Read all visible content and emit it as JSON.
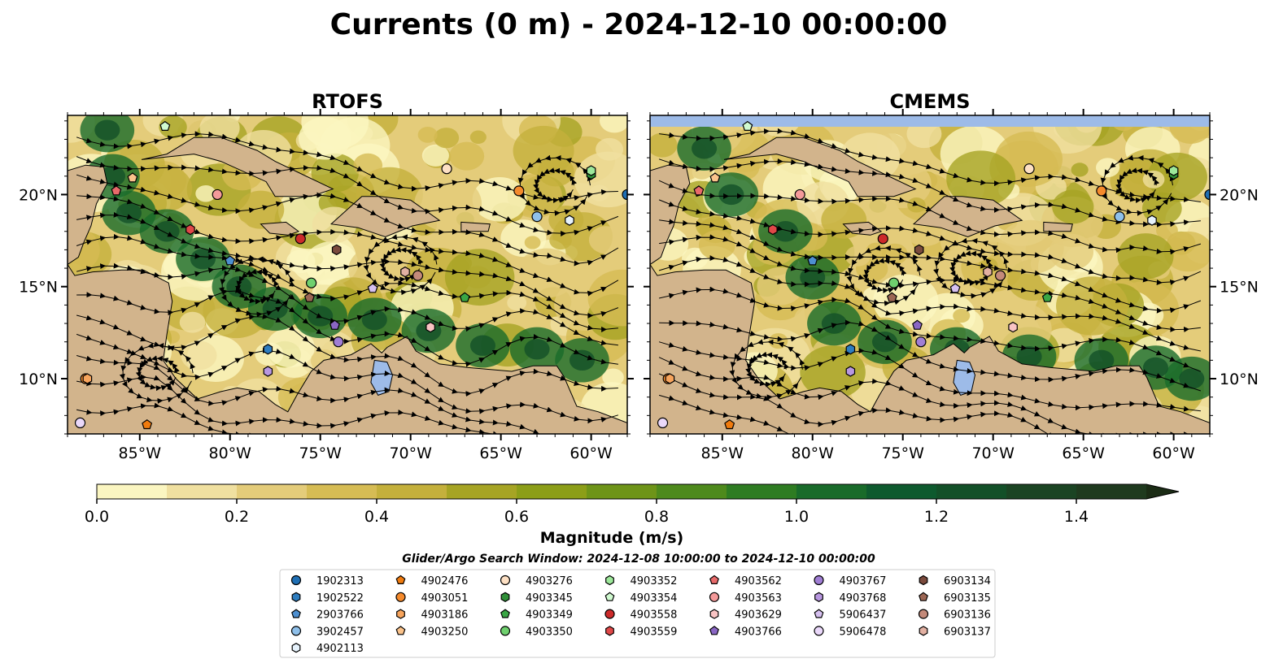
{
  "title": "Currents (0 m) - 2024-12-10 00:00:00",
  "colors": {
    "land": "#d2b48c",
    "water_body": "#9dbbe8",
    "ocean_gaps": "#9dbbe8",
    "scale": [
      "#fbf6c1",
      "#f0e0a0",
      "#e4cc7a",
      "#d6bc54",
      "#c4b03c",
      "#a6a424",
      "#8c9e18",
      "#6e9418",
      "#4e8a1c",
      "#2e7c22",
      "#196b2a",
      "#0e5a2e",
      "#135028",
      "#1b4423",
      "#1f3a1e",
      "#1b2c15"
    ]
  },
  "panels": [
    {
      "title": "RTOFS"
    },
    {
      "title": "CMEMS"
    }
  ],
  "axes": {
    "lon_range": [
      -89,
      -58
    ],
    "lat_range": [
      7,
      24.3
    ],
    "lon_ticks": [
      {
        "value": -85,
        "label": "85°W"
      },
      {
        "value": -80,
        "label": "80°W"
      },
      {
        "value": -75,
        "label": "75°W"
      },
      {
        "value": -70,
        "label": "70°W"
      },
      {
        "value": -65,
        "label": "65°W"
      },
      {
        "value": -60,
        "label": "60°W"
      }
    ],
    "lat_ticks": [
      {
        "value": 20,
        "label": "20°N"
      },
      {
        "value": 15,
        "label": "15°N"
      },
      {
        "value": 10,
        "label": "10°N"
      }
    ]
  },
  "colorbar": {
    "label": "Magnitude (m/s)",
    "min": 0,
    "max": 1.6,
    "step": 0.1,
    "ticks": [
      {
        "value": 0.0,
        "label": "0.0"
      },
      {
        "value": 0.2,
        "label": "0.2"
      },
      {
        "value": 0.4,
        "label": "0.4"
      },
      {
        "value": 0.6,
        "label": "0.6"
      },
      {
        "value": 0.8,
        "label": "0.8"
      },
      {
        "value": 1.0,
        "label": "1.0"
      },
      {
        "value": 1.2,
        "label": "1.2"
      },
      {
        "value": 1.4,
        "label": "1.4"
      }
    ]
  },
  "search_window": "Glider/Argo Search Window: 2024-12-08 10:00:00 to 2024-12-10 00:00:00",
  "floats": [
    {
      "id": "1902313",
      "marker": "circle",
      "color": "#1f6fb4",
      "lon": -58.0,
      "lat": 20.0
    },
    {
      "id": "1902522",
      "marker": "hexagon",
      "color": "#2e7dbf",
      "lon": null,
      "lat": null
    },
    {
      "id": "2903766",
      "marker": "pentagon",
      "color": "#4d8fd0",
      "lon": -80.0,
      "lat": 16.4
    },
    {
      "id": "3902457",
      "marker": "circle",
      "color": "#8fc0ea",
      "lon": -63.0,
      "lat": 18.8
    },
    {
      "id": "4902113",
      "marker": "hexagon",
      "color": "#e6f2fc",
      "lon": -61.2,
      "lat": 18.6
    },
    {
      "id": "4902476",
      "marker": "pentagon",
      "color": "#f07b0e",
      "lon": -84.6,
      "lat": 7.5
    },
    {
      "id": "4903051",
      "marker": "circle",
      "color": "#f58a2c",
      "lon": -64.0,
      "lat": 20.2
    },
    {
      "id": "4903186",
      "marker": "hexagon",
      "color": "#f7a45c",
      "lon": null,
      "lat": null
    },
    {
      "id": "4903250",
      "marker": "pentagon",
      "color": "#fbc38b",
      "lon": -85.4,
      "lat": 20.9
    },
    {
      "id": "4903276",
      "marker": "circle",
      "color": "#fde0c4",
      "lon": -68.0,
      "lat": 21.4
    },
    {
      "id": "4903345",
      "marker": "hexagon",
      "color": "#2f8f38",
      "lon": -60.0,
      "lat": 21.1
    },
    {
      "id": "4903349",
      "marker": "pentagon",
      "color": "#3aa645",
      "lon": -67.0,
      "lat": 14.4
    },
    {
      "id": "4903350",
      "marker": "circle",
      "color": "#6fd06e",
      "lon": -75.5,
      "lat": 15.2
    },
    {
      "id": "4903352",
      "marker": "hexagon",
      "color": "#9de89a",
      "lon": -60.0,
      "lat": 21.3
    },
    {
      "id": "4903354",
      "marker": "pentagon",
      "color": "#d0fad0",
      "lon": -83.6,
      "lat": 23.7
    },
    {
      "id": "4903558",
      "marker": "circle",
      "color": "#cc2a2a",
      "lon": -76.1,
      "lat": 17.6
    },
    {
      "id": "4903559",
      "marker": "hexagon",
      "color": "#e04848",
      "lon": -82.2,
      "lat": 18.1
    },
    {
      "id": "4903562",
      "marker": "pentagon",
      "color": "#e86a6a",
      "lon": -86.3,
      "lat": 20.2
    },
    {
      "id": "4903563",
      "marker": "circle",
      "color": "#f49a9a",
      "lon": -80.7,
      "lat": 20.0
    },
    {
      "id": "4903629",
      "marker": "hexagon",
      "color": "#f9c4c4",
      "lon": -68.9,
      "lat": 12.8
    },
    {
      "id": "4903766",
      "marker": "pentagon",
      "color": "#8a66c4",
      "lon": -74.2,
      "lat": 12.9
    },
    {
      "id": "4903767",
      "marker": "circle",
      "color": "#a07ed4",
      "lon": -74.0,
      "lat": 12.0
    },
    {
      "id": "4903768",
      "marker": "hexagon",
      "color": "#b897e0",
      "lon": -77.9,
      "lat": 10.4
    },
    {
      "id": "5906437",
      "marker": "pentagon",
      "color": "#d6c0f0",
      "lon": -72.1,
      "lat": 14.9
    },
    {
      "id": "5906478",
      "marker": "circle",
      "color": "#ead8fa",
      "lon": -88.3,
      "lat": 7.6
    },
    {
      "id": "6903134",
      "marker": "hexagon",
      "color": "#7a4a3c",
      "lon": -74.1,
      "lat": 17.0
    },
    {
      "id": "6903135",
      "marker": "pentagon",
      "color": "#9c6654",
      "lon": -75.6,
      "lat": 14.4
    },
    {
      "id": "6903136",
      "marker": "circle",
      "color": "#c48a7a",
      "lon": -69.6,
      "lat": 15.6
    },
    {
      "id": "6903137",
      "marker": "hexagon",
      "color": "#e2b0a2",
      "lon": -70.3,
      "lat": 15.8
    }
  ],
  "extra_markers": [
    {
      "marker": "hexagon",
      "color": "#2e7dbf",
      "lon": -77.9,
      "lat": 11.6
    },
    {
      "marker": "circle",
      "color": "#f58a2c",
      "lon": -88.0,
      "lat": 10.0
    },
    {
      "marker": "hexagon",
      "color": "#f7a45c",
      "lon": -87.9,
      "lat": 10.0
    }
  ]
}
